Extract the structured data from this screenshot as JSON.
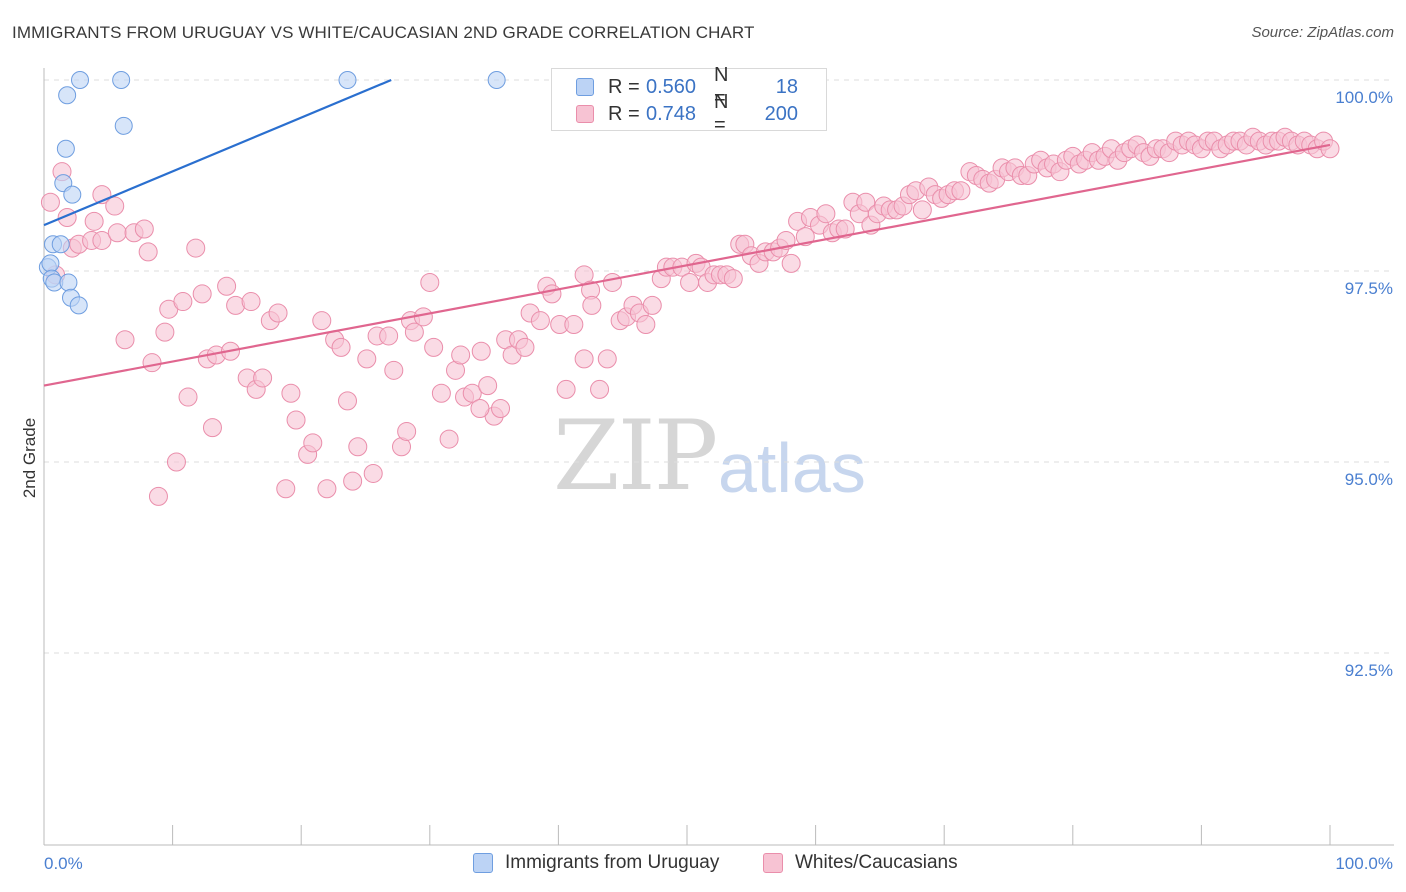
{
  "header": {
    "title": "IMMIGRANTS FROM URUGUAY VS WHITE/CAUCASIAN 2ND GRADE CORRELATION CHART",
    "source": "Source: ZipAtlas.com"
  },
  "watermark": {
    "zip": "ZIP",
    "atlas": "atlas"
  },
  "legend": {
    "r_label": "R =",
    "n_label": "N =",
    "series1": {
      "r": "0.560",
      "n": "18"
    },
    "series2": {
      "r": "0.748",
      "n": "200"
    }
  },
  "bottom_legend": {
    "series1": "Immigrants from Uruguay",
    "series2": "Whites/Caucasians"
  },
  "colors": {
    "blue_fill": "#bcd3f5",
    "blue_stroke": "#6f9ee0",
    "blue_line": "#2a6fcf",
    "pink_fill": "#f7c3d3",
    "pink_stroke": "#ea8eab",
    "pink_line": "#e0668f",
    "tick_label": "#4a7fd0",
    "grid": "#dddddd"
  },
  "chart_data": {
    "type": "scatter",
    "title": "IMMIGRANTS FROM URUGUAY VS WHITE/CAUCASIAN 2ND GRADE CORRELATION CHART",
    "ylabel": "2nd Grade",
    "xlabel": "",
    "xlim": [
      0,
      100
    ],
    "ylim": [
      90.0,
      100.2
    ],
    "y_ticks": [
      {
        "value": 100.0,
        "label": "100.0%"
      },
      {
        "value": 97.5,
        "label": "97.5%"
      },
      {
        "value": 95.0,
        "label": "95.0%"
      },
      {
        "value": 92.5,
        "label": "92.5%"
      }
    ],
    "x_tick_labels": {
      "left": "0.0%",
      "right": "100.0%"
    },
    "grid": true,
    "legend_position": "top-center",
    "series": [
      {
        "name": "Immigrants from Uruguay",
        "color": "#bcd3f5",
        "trendline": {
          "x": [
            0,
            27.0
          ],
          "y": [
            98.1,
            100.0
          ]
        },
        "points": [
          [
            0.3,
            97.55
          ],
          [
            0.5,
            97.6
          ],
          [
            0.6,
            97.4
          ],
          [
            0.8,
            97.35
          ],
          [
            0.7,
            97.85
          ],
          [
            1.3,
            97.85
          ],
          [
            1.5,
            98.65
          ],
          [
            1.7,
            99.1
          ],
          [
            1.8,
            99.8
          ],
          [
            1.9,
            97.35
          ],
          [
            2.1,
            97.15
          ],
          [
            2.2,
            98.5
          ],
          [
            2.7,
            97.05
          ],
          [
            2.8,
            100.0
          ],
          [
            6.0,
            100.0
          ],
          [
            6.2,
            99.4
          ],
          [
            23.6,
            100.0
          ],
          [
            35.2,
            100.0
          ]
        ]
      },
      {
        "name": "Whites/Caucasians",
        "color": "#f7c3d3",
        "trendline": {
          "x": [
            0,
            100
          ],
          "y": [
            96.0,
            99.15
          ]
        },
        "points": [
          [
            0.5,
            98.4
          ],
          [
            0.9,
            97.45
          ],
          [
            1.4,
            98.8
          ],
          [
            1.8,
            98.2
          ],
          [
            2.2,
            97.8
          ],
          [
            2.7,
            97.85
          ],
          [
            3.7,
            97.9
          ],
          [
            3.9,
            98.15
          ],
          [
            4.5,
            98.5
          ],
          [
            4.5,
            97.9
          ],
          [
            5.5,
            98.35
          ],
          [
            5.7,
            98.0
          ],
          [
            6.3,
            96.6
          ],
          [
            7.0,
            98.0
          ],
          [
            7.8,
            98.05
          ],
          [
            8.1,
            97.75
          ],
          [
            8.4,
            96.3
          ],
          [
            8.9,
            94.55
          ],
          [
            9.4,
            96.7
          ],
          [
            9.7,
            97.0
          ],
          [
            10.3,
            95.0
          ],
          [
            10.8,
            97.1
          ],
          [
            11.2,
            95.85
          ],
          [
            11.8,
            97.8
          ],
          [
            12.3,
            97.2
          ],
          [
            12.7,
            96.35
          ],
          [
            13.1,
            95.45
          ],
          [
            13.4,
            96.4
          ],
          [
            14.2,
            97.3
          ],
          [
            14.5,
            96.45
          ],
          [
            14.9,
            97.05
          ],
          [
            15.8,
            96.1
          ],
          [
            16.1,
            97.1
          ],
          [
            16.5,
            95.95
          ],
          [
            17.0,
            96.1
          ],
          [
            17.6,
            96.85
          ],
          [
            18.2,
            96.95
          ],
          [
            18.8,
            94.65
          ],
          [
            19.2,
            95.9
          ],
          [
            19.6,
            95.55
          ],
          [
            20.5,
            95.1
          ],
          [
            20.9,
            95.25
          ],
          [
            21.6,
            96.85
          ],
          [
            22.0,
            94.65
          ],
          [
            22.6,
            96.6
          ],
          [
            23.1,
            96.5
          ],
          [
            23.6,
            95.8
          ],
          [
            24.0,
            94.75
          ],
          [
            24.4,
            95.2
          ],
          [
            25.1,
            96.35
          ],
          [
            25.6,
            94.85
          ],
          [
            25.9,
            96.65
          ],
          [
            26.8,
            96.65
          ],
          [
            27.2,
            96.2
          ],
          [
            27.8,
            95.2
          ],
          [
            28.2,
            95.4
          ],
          [
            28.5,
            96.85
          ],
          [
            28.8,
            96.7
          ],
          [
            29.5,
            96.9
          ],
          [
            30.0,
            97.35
          ],
          [
            30.3,
            96.5
          ],
          [
            30.9,
            95.9
          ],
          [
            31.5,
            95.3
          ],
          [
            32.0,
            96.2
          ],
          [
            32.4,
            96.4
          ],
          [
            32.7,
            95.85
          ],
          [
            33.3,
            95.9
          ],
          [
            34.0,
            96.45
          ],
          [
            34.5,
            96.0
          ],
          [
            35.0,
            95.6
          ],
          [
            35.5,
            95.7
          ],
          [
            35.9,
            96.6
          ],
          [
            36.4,
            96.4
          ],
          [
            36.9,
            96.6
          ],
          [
            37.4,
            96.5
          ],
          [
            37.8,
            96.95
          ],
          [
            38.6,
            96.85
          ],
          [
            39.1,
            97.3
          ],
          [
            39.5,
            97.2
          ],
          [
            40.1,
            96.8
          ],
          [
            40.6,
            95.95
          ],
          [
            41.2,
            96.8
          ],
          [
            42.0,
            97.45
          ],
          [
            42.5,
            97.25
          ],
          [
            42.6,
            97.05
          ],
          [
            43.2,
            95.95
          ],
          [
            43.8,
            96.35
          ],
          [
            44.2,
            97.35
          ],
          [
            44.8,
            96.85
          ],
          [
            45.3,
            96.9
          ],
          [
            45.8,
            97.05
          ],
          [
            46.3,
            96.95
          ],
          [
            46.8,
            96.8
          ],
          [
            47.3,
            97.05
          ],
          [
            48.0,
            97.4
          ],
          [
            48.4,
            97.55
          ],
          [
            48.9,
            97.55
          ],
          [
            49.6,
            97.55
          ],
          [
            50.2,
            97.35
          ],
          [
            50.7,
            97.6
          ],
          [
            51.1,
            97.55
          ],
          [
            51.6,
            97.35
          ],
          [
            52.1,
            97.45
          ],
          [
            52.6,
            97.45
          ],
          [
            53.1,
            97.45
          ],
          [
            53.6,
            97.4
          ],
          [
            54.1,
            97.85
          ],
          [
            54.5,
            97.85
          ],
          [
            55.0,
            97.7
          ],
          [
            55.6,
            97.6
          ],
          [
            56.1,
            97.75
          ],
          [
            56.7,
            97.75
          ],
          [
            57.2,
            97.8
          ],
          [
            57.7,
            97.9
          ],
          [
            58.1,
            97.6
          ],
          [
            58.6,
            98.15
          ],
          [
            59.2,
            97.95
          ],
          [
            59.6,
            98.2
          ],
          [
            60.3,
            98.1
          ],
          [
            60.8,
            98.25
          ],
          [
            61.3,
            98.0
          ],
          [
            61.8,
            98.05
          ],
          [
            62.3,
            98.05
          ],
          [
            62.9,
            98.4
          ],
          [
            63.4,
            98.25
          ],
          [
            63.9,
            98.4
          ],
          [
            64.3,
            98.1
          ],
          [
            64.8,
            98.25
          ],
          [
            65.3,
            98.35
          ],
          [
            65.8,
            98.3
          ],
          [
            66.3,
            98.3
          ],
          [
            66.8,
            98.35
          ],
          [
            67.3,
            98.5
          ],
          [
            67.8,
            98.55
          ],
          [
            68.3,
            98.3
          ],
          [
            68.8,
            98.6
          ],
          [
            69.3,
            98.5
          ],
          [
            69.8,
            98.45
          ],
          [
            70.3,
            98.5
          ],
          [
            70.8,
            98.55
          ],
          [
            71.3,
            98.55
          ],
          [
            72.0,
            98.8
          ],
          [
            72.5,
            98.75
          ],
          [
            73.0,
            98.7
          ],
          [
            73.5,
            98.65
          ],
          [
            74.0,
            98.7
          ],
          [
            74.5,
            98.85
          ],
          [
            75.0,
            98.8
          ],
          [
            75.5,
            98.85
          ],
          [
            76.0,
            98.75
          ],
          [
            76.5,
            98.75
          ],
          [
            77.0,
            98.9
          ],
          [
            77.5,
            98.95
          ],
          [
            78.0,
            98.85
          ],
          [
            78.5,
            98.9
          ],
          [
            79.0,
            98.8
          ],
          [
            79.5,
            98.95
          ],
          [
            80.0,
            99.0
          ],
          [
            80.5,
            98.9
          ],
          [
            81.0,
            98.95
          ],
          [
            81.5,
            99.05
          ],
          [
            82.0,
            98.95
          ],
          [
            82.5,
            99.0
          ],
          [
            83.0,
            99.1
          ],
          [
            83.5,
            98.95
          ],
          [
            84.0,
            99.05
          ],
          [
            84.5,
            99.1
          ],
          [
            85.0,
            99.15
          ],
          [
            85.5,
            99.05
          ],
          [
            86.0,
            99.0
          ],
          [
            86.5,
            99.1
          ],
          [
            87.0,
            99.1
          ],
          [
            87.5,
            99.05
          ],
          [
            88.0,
            99.2
          ],
          [
            88.5,
            99.15
          ],
          [
            89.0,
            99.2
          ],
          [
            89.5,
            99.15
          ],
          [
            90.0,
            99.1
          ],
          [
            90.5,
            99.2
          ],
          [
            91.0,
            99.2
          ],
          [
            91.5,
            99.1
          ],
          [
            92.0,
            99.15
          ],
          [
            92.5,
            99.2
          ],
          [
            93.0,
            99.2
          ],
          [
            93.5,
            99.15
          ],
          [
            94.0,
            99.25
          ],
          [
            94.5,
            99.2
          ],
          [
            95.0,
            99.15
          ],
          [
            95.5,
            99.2
          ],
          [
            96.0,
            99.2
          ],
          [
            96.5,
            99.25
          ],
          [
            97.0,
            99.2
          ],
          [
            97.5,
            99.15
          ],
          [
            98.0,
            99.2
          ],
          [
            98.5,
            99.15
          ],
          [
            99.0,
            99.1
          ],
          [
            99.5,
            99.2
          ],
          [
            100.0,
            99.1
          ],
          [
            33.9,
            95.7
          ],
          [
            42.0,
            96.35
          ]
        ]
      }
    ]
  }
}
